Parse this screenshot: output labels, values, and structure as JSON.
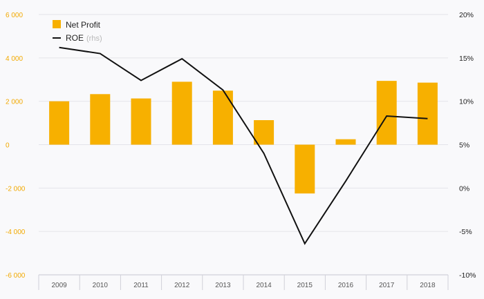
{
  "chart_data": {
    "type": "bar",
    "categories": [
      "2009",
      "2010",
      "2011",
      "2012",
      "2013",
      "2014",
      "2015",
      "2016",
      "2017",
      "2018"
    ],
    "series": [
      {
        "name": "Net Profit",
        "type": "bar",
        "axis": "left",
        "color": "#f7b000",
        "values": [
          2000,
          2330,
          2130,
          2900,
          2490,
          1130,
          -2250,
          250,
          2940,
          2860
        ]
      },
      {
        "name": "ROE",
        "name_suffix": "(rhs)",
        "type": "line",
        "axis": "right",
        "color": "#111111",
        "values": [
          16.2,
          15.5,
          12.4,
          14.9,
          11.3,
          4.0,
          -6.4,
          0.8,
          8.3,
          8.0
        ]
      }
    ],
    "y_left": {
      "min": -6000,
      "max": 6000,
      "ticks": [
        6000,
        4000,
        2000,
        0,
        -2000,
        -4000,
        -6000
      ],
      "tick_labels": [
        "6 000",
        "4 000",
        "2 000",
        "0",
        "-2 000",
        "-4 000",
        "-6 000"
      ],
      "label_color": "#f2a900"
    },
    "y_right": {
      "min": -10,
      "max": 20,
      "ticks": [
        20,
        15,
        10,
        5,
        0,
        -5,
        -10
      ],
      "tick_labels": [
        "20%",
        "15%",
        "10%",
        "5%",
        "0%",
        "-5%",
        "-10%"
      ]
    },
    "title": "",
    "xlabel": "",
    "ylabel": "",
    "grid": true,
    "legend_position": "top-left"
  }
}
